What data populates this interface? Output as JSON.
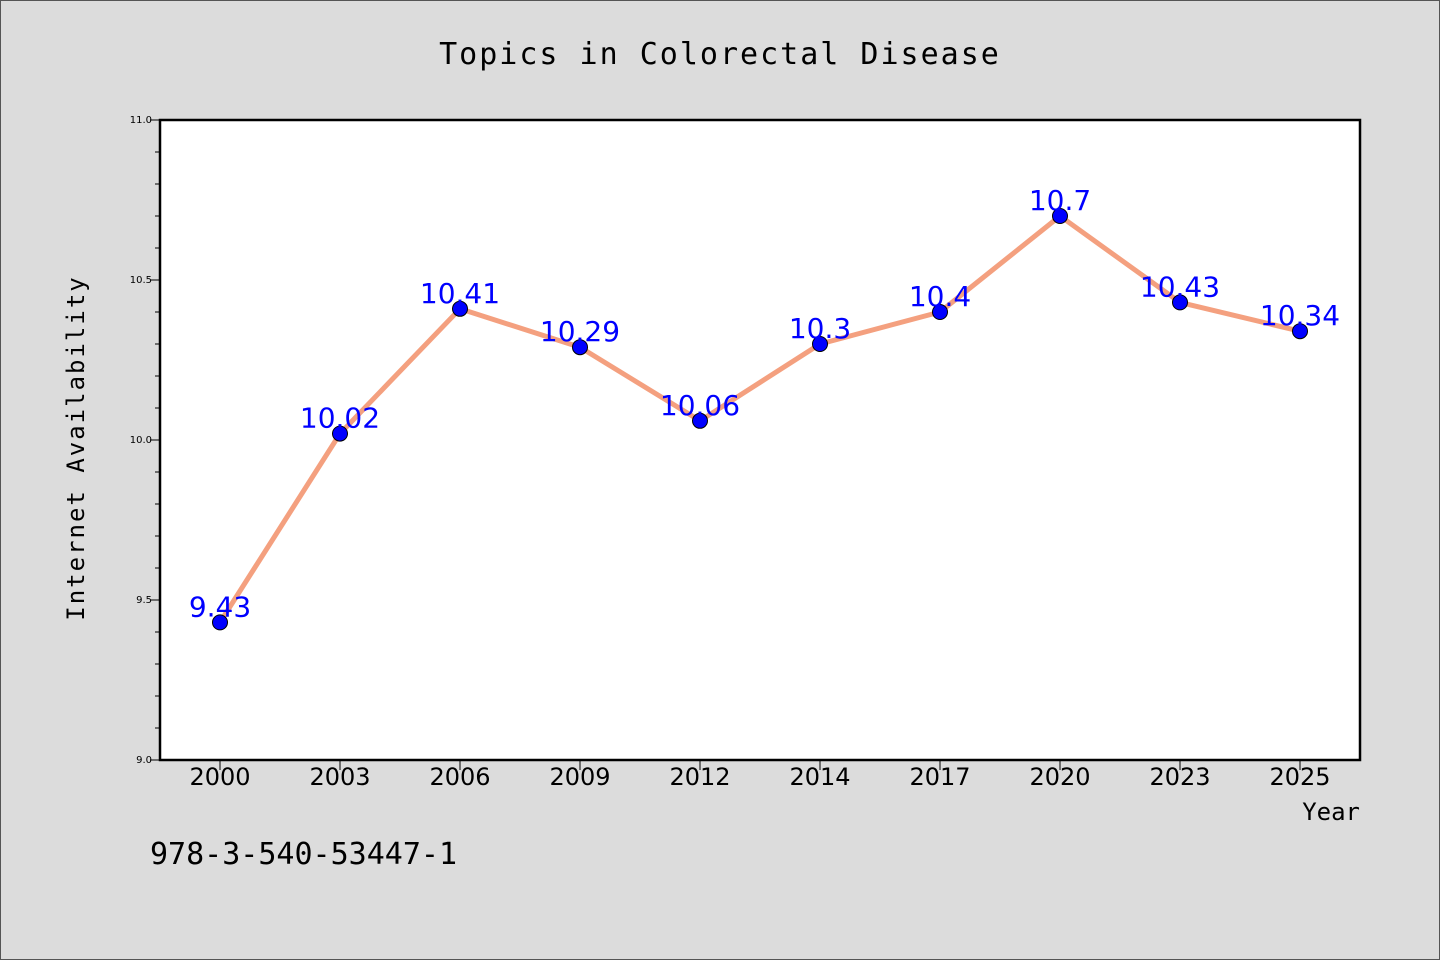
{
  "chart_data": {
    "type": "line",
    "title": "Topics in Colorectal Disease",
    "xlabel": "Year",
    "ylabel": "Internet Availability",
    "categories": [
      "2000",
      "2003",
      "2006",
      "2009",
      "2012",
      "2014",
      "2017",
      "2020",
      "2023",
      "2025"
    ],
    "series": [
      {
        "values": [
          9.43,
          10.02,
          10.41,
          10.29,
          10.06,
          10.3,
          10.4,
          10.7,
          10.43,
          10.34
        ]
      }
    ],
    "data_labels": [
      "9.43",
      "10.02",
      "10.41",
      "10.29",
      "10.06",
      "10.3",
      "10.4",
      "10.7",
      "10.43",
      "10.34"
    ],
    "ylim": [
      9.0,
      11.0
    ],
    "y_ticks": [
      "9.0",
      "9.5",
      "10.0",
      "10.5",
      "11.0"
    ],
    "grid": false,
    "legend": "none",
    "colors": {
      "line": "#f4a07f",
      "marker": "#0000ff",
      "label": "#0000ff",
      "plot_bg": "#ffffff",
      "figure_bg": "#dcdcdc"
    }
  },
  "footer": {
    "isbn": "978-3-540-53447-1"
  }
}
